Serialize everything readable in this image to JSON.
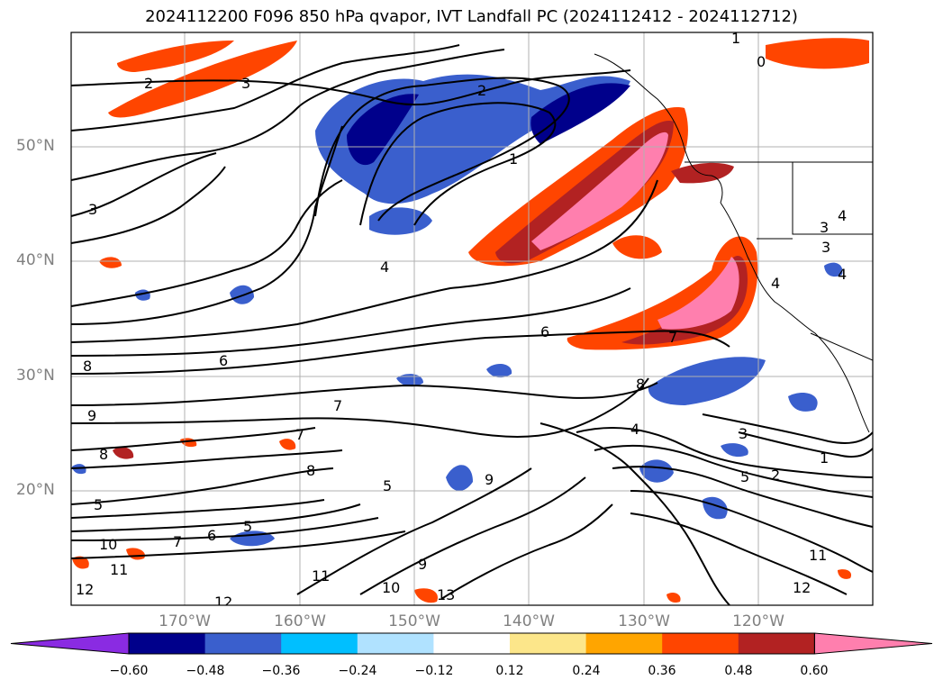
{
  "title": "2024112200 F096 850 hPa qvapor, IVT Landfall PC (2024112412 - 2024112712)",
  "lat_labels": [
    "50°N",
    "40°N",
    "30°N",
    "20°N"
  ],
  "lon_labels": [
    "170°W",
    "160°W",
    "150°W",
    "140°W",
    "130°W",
    "120°W"
  ],
  "colorbar": {
    "colors": [
      "#8a2be2",
      "#00008b",
      "#3a5fcd",
      "#00bfff",
      "#b0e2ff",
      "#ffffff",
      "#fce68a",
      "#ffa500",
      "#ff4500",
      "#b22222",
      "#ff7fae"
    ],
    "boundaries": [
      -0.6,
      -0.48,
      -0.36,
      -0.24,
      -0.12,
      0.12,
      0.24,
      0.36,
      0.48,
      0.6
    ],
    "tick_labels": [
      "−0.60",
      "−0.48",
      "−0.36",
      "−0.24",
      "−0.12",
      "0.12",
      "0.24",
      "0.36",
      "0.48",
      "0.60"
    ],
    "extend": "both"
  },
  "contour_labels": [
    "1",
    "0",
    "2",
    "3",
    "2",
    "3",
    "1",
    "4",
    "3",
    "4",
    "3",
    "4",
    "4",
    "6",
    "6",
    "7",
    "8",
    "8",
    "9",
    "8",
    "7",
    "7",
    "9",
    "5",
    "6",
    "5",
    "8",
    "5",
    "10",
    "11",
    "12",
    "7",
    "9",
    "11",
    "13",
    "10",
    "12",
    "4",
    "3",
    "2",
    "5",
    "1",
    "11",
    "12"
  ]
}
